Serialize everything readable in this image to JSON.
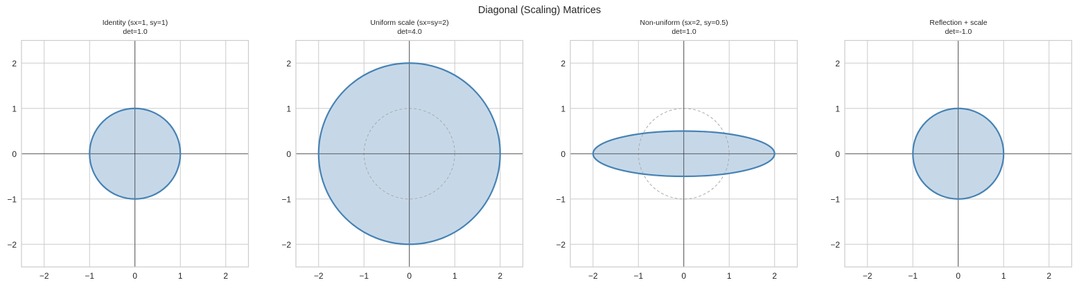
{
  "chart_data": {
    "title": "Diagonal (Scaling) Matrices",
    "type": "line",
    "panels": [
      {
        "title": "Identity (sx=1, sy=1)",
        "subtitle": "det=1.0",
        "sx": 1,
        "sy": 1,
        "shape": "ellipse",
        "rx": 1,
        "ry": 1,
        "reference_unit_circle_visible": false,
        "xlim": [
          -2.5,
          2.5
        ],
        "ylim": [
          -2.5,
          2.5
        ],
        "xticks": [
          -2,
          -1,
          0,
          1,
          2
        ],
        "yticks": [
          -2,
          -1,
          0,
          1,
          2
        ]
      },
      {
        "title": "Uniform scale (sx=sy=2)",
        "subtitle": "det=4.0",
        "sx": 2,
        "sy": 2,
        "shape": "ellipse",
        "rx": 2,
        "ry": 2,
        "reference_unit_circle_visible": true,
        "xlim": [
          -2.5,
          2.5
        ],
        "ylim": [
          -2.5,
          2.5
        ],
        "xticks": [
          -2,
          -1,
          0,
          1,
          2
        ],
        "yticks": [
          -2,
          -1,
          0,
          1,
          2
        ]
      },
      {
        "title": "Non-uniform (sx=2, sy=0.5)",
        "subtitle": "det=1.0",
        "sx": 2,
        "sy": 0.5,
        "shape": "ellipse",
        "rx": 2,
        "ry": 0.5,
        "reference_unit_circle_visible": true,
        "xlim": [
          -2.5,
          2.5
        ],
        "ylim": [
          -2.5,
          2.5
        ],
        "xticks": [
          -2,
          -1,
          0,
          1,
          2
        ],
        "yticks": [
          -2,
          -1,
          0,
          1,
          2
        ]
      },
      {
        "title": "Reflection + scale",
        "subtitle": "det=-1.0",
        "sx": -1,
        "sy": 1,
        "shape": "ellipse",
        "rx": 1,
        "ry": 1,
        "reference_unit_circle_visible": false,
        "xlim": [
          -2.5,
          2.5
        ],
        "ylim": [
          -2.5,
          2.5
        ],
        "xticks": [
          -2,
          -1,
          0,
          1,
          2
        ],
        "yticks": [
          -2,
          -1,
          0,
          1,
          2
        ]
      }
    ],
    "xlabel": "",
    "ylabel": "",
    "grid": true,
    "legend": null
  },
  "colors": {
    "stroke": "#4682b4",
    "fill": "#c6d8e8",
    "reference": "#aaaaaa",
    "axis_lines": "#333333",
    "grid": "#cccccc",
    "spine": "#cccccc"
  },
  "tick_labels": {
    "-2": "−2",
    "-1": "−1",
    "0": "0",
    "1": "1",
    "2": "2"
  }
}
